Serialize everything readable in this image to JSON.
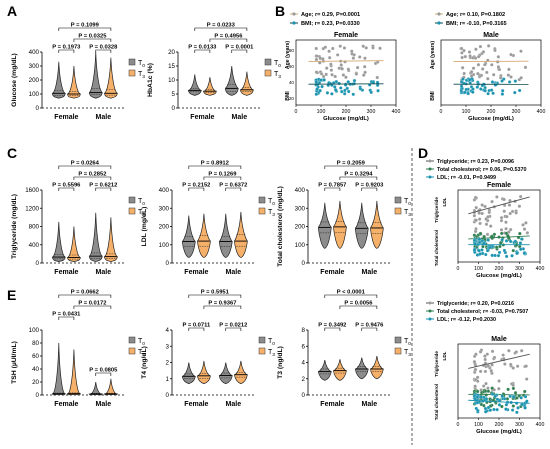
{
  "chart_data": [
    {
      "id": "A1",
      "panel_letter": "A",
      "type": "violin",
      "ylabel": "Glucose (mg/dL)",
      "ylim": [
        0,
        400
      ],
      "yticks": [
        0,
        100,
        200,
        300,
        400
      ],
      "categories": [
        "Female",
        "Male"
      ],
      "series": [
        {
          "name": "T0",
          "values": [
            [
              70,
              90,
              105,
              125,
              330
            ],
            [
              70,
              95,
              110,
              140,
              400
            ]
          ]
        },
        {
          "name": "T3",
          "values": [
            [
              70,
              88,
              100,
              118,
              300
            ],
            [
              70,
              92,
              105,
              130,
              360
            ]
          ]
        }
      ],
      "legend": [
        "T0",
        "T3"
      ],
      "pvalues": [
        {
          "text": "P = 0.1099",
          "from": 0,
          "to": 3,
          "level": 3,
          "color": "#000000"
        },
        {
          "text": "P = 0.0325",
          "from": 1,
          "to": 3,
          "level": 2,
          "color": "#1a9fc0"
        },
        {
          "text": "P = 0.0328",
          "from": 2,
          "to": 3,
          "level": 1,
          "color": "#1a9fc0"
        },
        {
          "text": "P = 0.1973",
          "from": 0,
          "to": 1,
          "level": 1,
          "color": "#000000"
        }
      ]
    },
    {
      "id": "A2",
      "type": "violin",
      "ylabel": "HbA1c (%)",
      "ylim": [
        0,
        20
      ],
      "yticks": [
        0,
        5,
        10,
        15,
        20
      ],
      "categories": [
        "Female",
        "Male"
      ],
      "series": [
        {
          "name": "T0",
          "values": [
            [
              4.5,
              5.8,
              6.3,
              7.0,
              12
            ],
            [
              4.5,
              6.0,
              7.0,
              8.5,
              15
            ]
          ]
        },
        {
          "name": "T3",
          "values": [
            [
              4.5,
              5.6,
              6.0,
              6.6,
              11
            ],
            [
              4.5,
              5.8,
              6.5,
              7.3,
              13
            ]
          ]
        }
      ],
      "legend": [
        "T0",
        "T3"
      ],
      "pvalues": [
        {
          "text": "P = 0.0233",
          "from": 0,
          "to": 3,
          "level": 3,
          "color": "#1a9fc0"
        },
        {
          "text": "P = 0.4956",
          "from": 1,
          "to": 3,
          "level": 2,
          "color": "#000000"
        },
        {
          "text": "P = 0.0133",
          "from": 0,
          "to": 1,
          "level": 1,
          "color": "#1a9fc0"
        },
        {
          "text": "P = 0.0001",
          "from": 2,
          "to": 3,
          "level": 1,
          "color": "#1a9fc0"
        }
      ]
    },
    {
      "id": "C1",
      "panel_letter": "C",
      "type": "violin",
      "ylabel": "Triglyceride (mg/dL)",
      "ylim": [
        0,
        1600
      ],
      "yticks": [
        0,
        400,
        800,
        1200,
        1600
      ],
      "categories": [
        "Female",
        "Male"
      ],
      "series": [
        {
          "name": "T0",
          "values": [
            [
              30,
              90,
              130,
              190,
              900
            ],
            [
              30,
              100,
              150,
              220,
              1100
            ]
          ]
        },
        {
          "name": "T3",
          "values": [
            [
              30,
              85,
              120,
              175,
              800
            ],
            [
              30,
              95,
              140,
              200,
              1000
            ]
          ]
        }
      ],
      "legend": [
        "T0",
        "T3"
      ],
      "pvalues": [
        {
          "text": "P = 0.0264",
          "from": 0,
          "to": 3,
          "level": 3,
          "color": "#1a9fc0"
        },
        {
          "text": "P = 0.2852",
          "from": 1,
          "to": 3,
          "level": 2,
          "color": "#000000"
        },
        {
          "text": "P = 0.5596",
          "from": 0,
          "to": 1,
          "level": 1,
          "color": "#000000"
        },
        {
          "text": "P = 0.6212",
          "from": 2,
          "to": 3,
          "level": 1,
          "color": "#000000"
        }
      ]
    },
    {
      "id": "C2",
      "type": "violin",
      "ylabel": "LDL (mg/dL)",
      "ylim": [
        0,
        400
      ],
      "yticks": [
        0,
        100,
        200,
        300,
        400
      ],
      "categories": [
        "Female",
        "Male"
      ],
      "series": [
        {
          "name": "T0",
          "values": [
            [
              30,
              90,
              118,
              145,
              260
            ],
            [
              30,
              90,
              118,
              145,
              270
            ]
          ]
        },
        {
          "name": "T3",
          "values": [
            [
              30,
              92,
              120,
              150,
              270
            ],
            [
              30,
              92,
              120,
              155,
              280
            ]
          ]
        }
      ],
      "legend": [
        "T0",
        "T3"
      ],
      "pvalues": [
        {
          "text": "P = 0.8912",
          "from": 0,
          "to": 3,
          "level": 3,
          "color": "#000000"
        },
        {
          "text": "P = 0.1269",
          "from": 1,
          "to": 3,
          "level": 2,
          "color": "#000000"
        },
        {
          "text": "P = 0.2152",
          "from": 0,
          "to": 1,
          "level": 1,
          "color": "#000000"
        },
        {
          "text": "P = 0.6372",
          "from": 2,
          "to": 3,
          "level": 1,
          "color": "#000000"
        }
      ]
    },
    {
      "id": "C3",
      "type": "violin",
      "ylabel": "Total cholesterol (mg/dL)",
      "ylim": [
        0,
        400
      ],
      "yticks": [
        0,
        100,
        200,
        300,
        400
      ],
      "categories": [
        "Female",
        "Male"
      ],
      "series": [
        {
          "name": "T0",
          "values": [
            [
              80,
              165,
              195,
              225,
              330
            ],
            [
              80,
              160,
              190,
              220,
              330
            ]
          ]
        },
        {
          "name": "T3",
          "values": [
            [
              80,
              168,
              198,
              228,
              340
            ],
            [
              80,
              162,
              192,
              222,
              340
            ]
          ]
        }
      ],
      "legend": [
        "T0",
        "T3"
      ],
      "pvalues": [
        {
          "text": "P = 0.2059",
          "from": 0,
          "to": 3,
          "level": 3,
          "color": "#000000"
        },
        {
          "text": "P = 0.3294",
          "from": 1,
          "to": 3,
          "level": 2,
          "color": "#000000"
        },
        {
          "text": "P = 0.7857",
          "from": 0,
          "to": 1,
          "level": 1,
          "color": "#000000"
        },
        {
          "text": "P = 0.9203",
          "from": 2,
          "to": 3,
          "level": 1,
          "color": "#000000"
        }
      ]
    },
    {
      "id": "E1",
      "panel_letter": "E",
      "type": "violin",
      "ylabel": "TSH (µUI/mL)",
      "ylim": [
        0,
        100
      ],
      "yticks": [
        0,
        20,
        40,
        60,
        80,
        100
      ],
      "categories": [
        "Female",
        "Male"
      ],
      "series": [
        {
          "name": "T0",
          "values": [
            [
              0.3,
              1.2,
              2.0,
              3.0,
              80
            ],
            [
              0.3,
              1.0,
              1.7,
              2.6,
              20
            ]
          ]
        },
        {
          "name": "T3",
          "values": [
            [
              0.3,
              1.3,
              2.1,
              3.2,
              70
            ],
            [
              0.3,
              1.1,
              1.8,
              2.8,
              25
            ]
          ]
        }
      ],
      "legend": [
        "T0",
        "T3"
      ],
      "pvalues": [
        {
          "text": "P = 0.0662",
          "from": 0,
          "to": 3,
          "level": 4,
          "color": "#000000"
        },
        {
          "text": "P = 0.0172",
          "from": 1,
          "to": 3,
          "level": 3,
          "color": "#1a9fc0"
        },
        {
          "text": "P = 0.0431",
          "from": 0,
          "to": 1,
          "level": 2,
          "color": "#1a9fc0"
        },
        {
          "text": "P = 0.0805",
          "from": 2,
          "to": 3,
          "level": 0,
          "color": "#000000"
        }
      ]
    },
    {
      "id": "E2",
      "type": "violin",
      "ylabel": "T4 (ng/dL)",
      "ylim": [
        0,
        4
      ],
      "yticks": [
        0,
        1,
        2,
        3,
        4
      ],
      "categories": [
        "Female",
        "Male"
      ],
      "series": [
        {
          "name": "T0",
          "values": [
            [
              0.7,
              1.0,
              1.15,
              1.3,
              2.0
            ],
            [
              0.7,
              1.05,
              1.2,
              1.35,
              2.0
            ]
          ]
        },
        {
          "name": "T3",
          "values": [
            [
              0.7,
              1.02,
              1.18,
              1.33,
              2.1
            ],
            [
              0.7,
              1.1,
              1.25,
              1.4,
              2.1
            ]
          ]
        }
      ],
      "legend": [
        "T0",
        "T3"
      ],
      "pvalues": [
        {
          "text": "P = 0.5951",
          "from": 0,
          "to": 3,
          "level": 4,
          "color": "#000000"
        },
        {
          "text": "P = 0.9367",
          "from": 1,
          "to": 3,
          "level": 3,
          "color": "#000000"
        },
        {
          "text": "P = 0.0711",
          "from": 0,
          "to": 1,
          "level": 1,
          "color": "#000000"
        },
        {
          "text": "P = 0.0212",
          "from": 2,
          "to": 3,
          "level": 1,
          "color": "#1a9fc0"
        }
      ]
    },
    {
      "id": "E3",
      "type": "violin",
      "ylabel": "T3 (ng/dL)",
      "ylim": [
        0,
        8
      ],
      "yticks": [
        0,
        2,
        4,
        6,
        8
      ],
      "categories": [
        "Female",
        "Male"
      ],
      "series": [
        {
          "name": "T0",
          "values": [
            [
              1.8,
              2.6,
              2.9,
              3.2,
              4.3
            ],
            [
              2.0,
              2.9,
              3.2,
              3.5,
              4.6
            ]
          ]
        },
        {
          "name": "T3",
          "values": [
            [
              1.8,
              2.7,
              3.0,
              3.3,
              4.4
            ],
            [
              2.0,
              2.9,
              3.2,
              3.5,
              4.8
            ]
          ]
        }
      ],
      "legend": [
        "T0",
        "T3"
      ],
      "pvalues": [
        {
          "text": "P < 0.0001",
          "from": 0,
          "to": 3,
          "level": 4,
          "color": "#1a9fc0"
        },
        {
          "text": "P = 0.0056",
          "from": 1,
          "to": 3,
          "level": 3,
          "color": "#1a9fc0"
        },
        {
          "text": "P = 0.3492",
          "from": 0,
          "to": 1,
          "level": 1,
          "color": "#000000"
        },
        {
          "text": "P = 0.9476",
          "from": 2,
          "to": 3,
          "level": 1,
          "color": "#000000"
        }
      ]
    },
    {
      "id": "B1",
      "panel_letter": "B",
      "type": "scatter",
      "title": "Female",
      "xlabel": "Glucose (mg/dL)",
      "xlim": [
        0,
        400
      ],
      "xticks": [
        0,
        100,
        200,
        300,
        400
      ],
      "ylabels": [
        "Age (years)",
        "BMI"
      ],
      "yticks_left": [
        20,
        40,
        60,
        80
      ],
      "legend": [
        {
          "label": "Age; r= 0.29, P=0.0001",
          "color": "#d2a86e",
          "marker": "#9a9a9a"
        },
        {
          "label": "BMI; r= 0.23, P=0.0330",
          "color": "#0c4a4e",
          "marker": "#1a93b0"
        }
      ],
      "series": [
        {
          "name": "Age",
          "color": "#9a9a9a",
          "fit": [
            [
              50,
              47
            ],
            [
              350,
              62
            ]
          ]
        },
        {
          "name": "BMI",
          "color": "#1a93b0",
          "fit": [
            [
              50,
              26
            ],
            [
              350,
              34
            ]
          ]
        }
      ]
    },
    {
      "id": "B2",
      "type": "scatter",
      "title": "Male",
      "xlabel": "Glucose (mg/dL)",
      "xlim": [
        0,
        400
      ],
      "xticks": [
        0,
        100,
        200,
        300,
        400
      ],
      "ylabels": [
        "Age (years)",
        "BMI"
      ],
      "yticks_left": [
        20,
        40,
        60,
        80
      ],
      "legend": [
        {
          "label": "Age; r= 0.10, P=0.1802",
          "color": "#d2a86e",
          "marker": "#9a9a9a"
        },
        {
          "label": "BMI; r= -0.10, P=0.3165",
          "color": "#0c4a4e",
          "marker": "#1a93b0"
        }
      ],
      "series": [
        {
          "name": "Age",
          "color": "#9a9a9a",
          "fit": [
            [
              50,
              52
            ],
            [
              350,
              56
            ]
          ]
        },
        {
          "name": "BMI",
          "color": "#1a93b0",
          "fit": [
            [
              50,
              30
            ],
            [
              350,
              28
            ]
          ]
        }
      ]
    },
    {
      "id": "D1",
      "panel_letter": "D",
      "type": "scatter",
      "title": "Female",
      "xlabel": "Glucose (mg/dL)",
      "xlim": [
        0,
        400
      ],
      "xticks": [
        0,
        100,
        200,
        300,
        400
      ],
      "ylabels": [
        "Triglyceride",
        "LDL",
        "Total cholesterol"
      ],
      "legend": [
        {
          "label": "Triglyceride; r= 0.23, P=0.0096",
          "color": "#555555",
          "marker": "#9a9a9a"
        },
        {
          "label": "Total cholesterol; r= 0.06, P=0.5370",
          "color": "#2e7d4f",
          "marker": "#2e7d4f"
        },
        {
          "label": "LDL; r= -0.01, P=0.9499",
          "color": "#1a93b0",
          "marker": "#1a93b0"
        }
      ],
      "series": [
        {
          "name": "Triglyceride",
          "color": "#9a9a9a",
          "fit": [
            [
              50,
              190
            ],
            [
              350,
              470
            ]
          ]
        },
        {
          "name": "Total cholesterol",
          "color": "#2e7d4f",
          "fit": [
            [
              50,
              330
            ],
            [
              350,
              380
            ]
          ]
        },
        {
          "name": "LDL",
          "color": "#1a93b0",
          "fit": [
            [
              50,
              240
            ],
            [
              350,
              240
            ]
          ]
        }
      ]
    },
    {
      "id": "D2",
      "type": "scatter",
      "title": "Male",
      "xlabel": "Glucose (mg/dL)",
      "xlim": [
        0,
        400
      ],
      "xticks": [
        0,
        100,
        200,
        300,
        400
      ],
      "ylabels": [
        "Triglyceride",
        "LDL",
        "Total cholesterol"
      ],
      "legend": [
        {
          "label": "Triglyceride; r= 0.20, P=0.0216",
          "color": "#555555",
          "marker": "#9a9a9a"
        },
        {
          "label": "Total cholesterol; r= -0.03, P=0.7507",
          "color": "#2e7d4f",
          "marker": "#2e7d4f"
        },
        {
          "label": "LDL; r= -0.12, P=0.2030",
          "color": "#1a93b0",
          "marker": "#1a93b0"
        }
      ],
      "series": [
        {
          "name": "Triglyceride",
          "color": "#9a9a9a",
          "fit": [
            [
              50,
              230
            ],
            [
              350,
              460
            ]
          ]
        },
        {
          "name": "Total cholesterol",
          "color": "#2e7d4f",
          "fit": [
            [
              50,
              330
            ],
            [
              350,
              320
            ]
          ]
        },
        {
          "name": "LDL",
          "color": "#1a93b0",
          "fit": [
            [
              50,
              220
            ],
            [
              350,
              170
            ]
          ]
        }
      ]
    }
  ],
  "colors": {
    "t0": "#8c8c8c",
    "t3": "#f5b06a",
    "sig": "#1a9fc0",
    "text": "#000000"
  },
  "legend_labels": {
    "t0": "T0",
    "t3": "T3"
  }
}
